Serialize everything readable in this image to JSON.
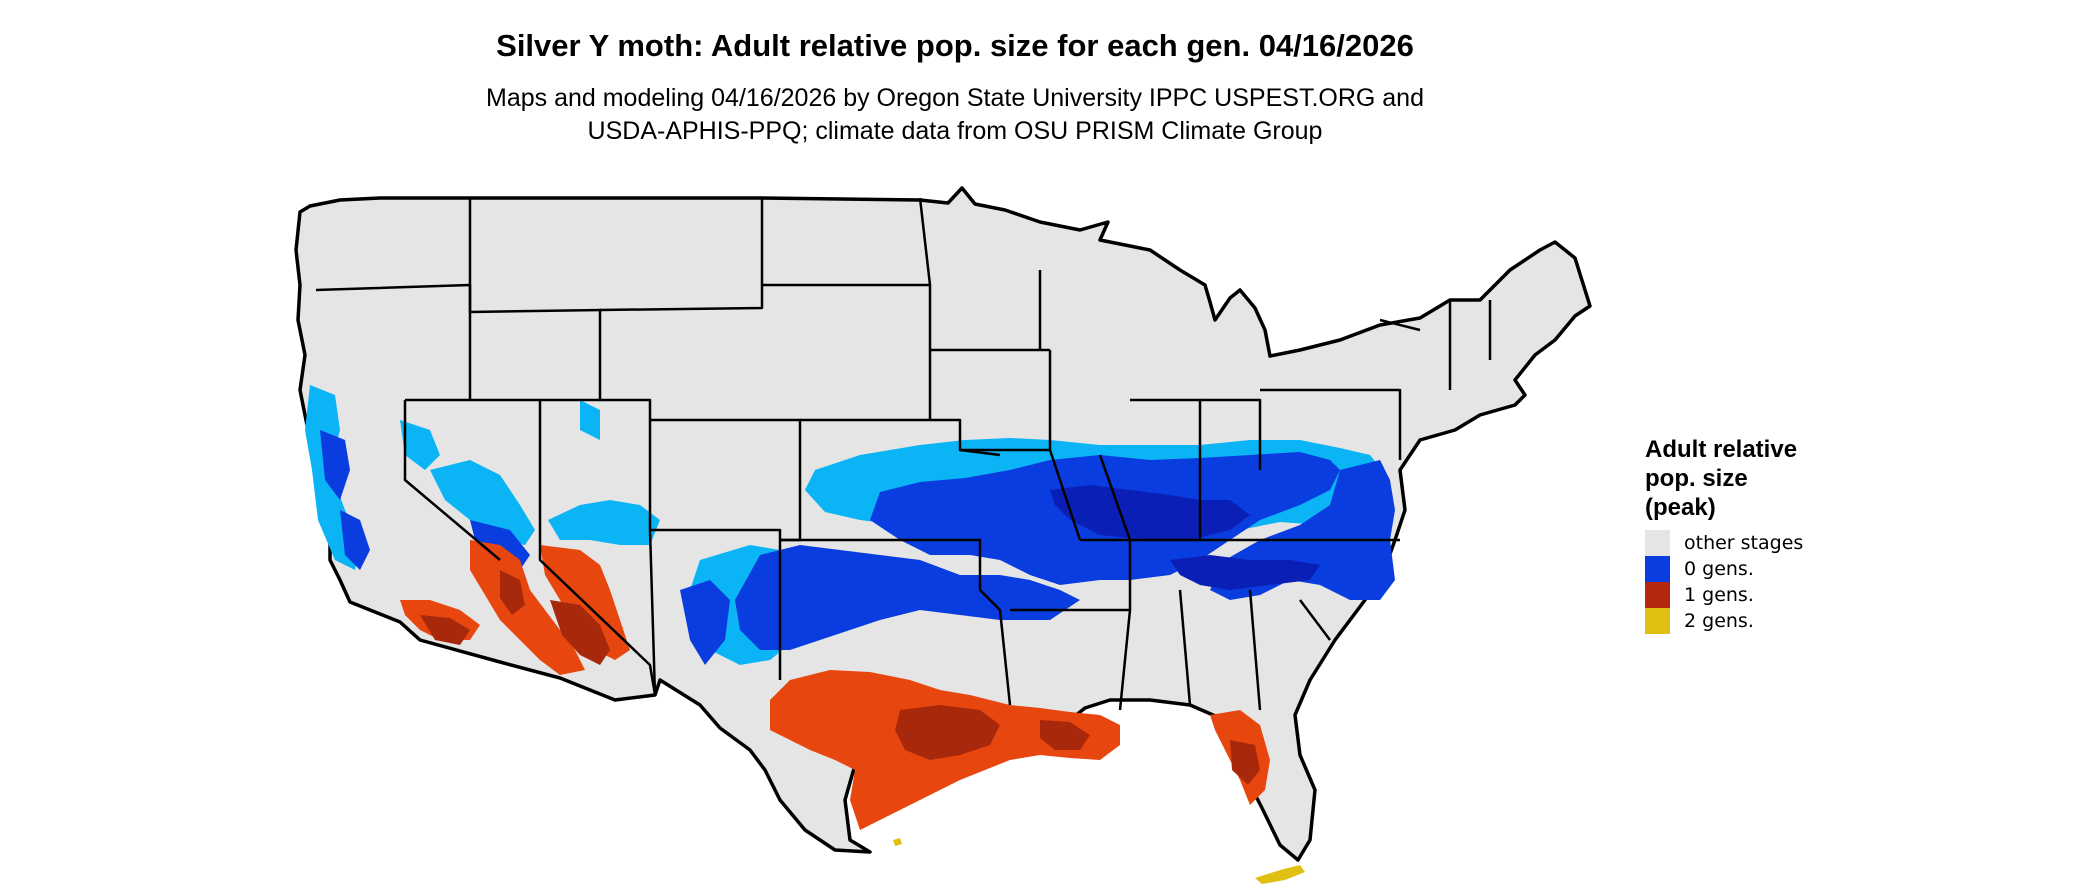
{
  "header": {
    "title": "Silver Y moth: Adult relative pop. size for each gen. 04/16/2026",
    "subtitle_line1": "Maps and modeling 04/16/2026 by Oregon State University IPPC USPEST.ORG and",
    "subtitle_line2": "USDA-APHIS-PPQ; climate data from OSU PRISM Climate Group"
  },
  "legend": {
    "title_line1": "Adult relative",
    "title_line2": "pop. size",
    "title_line3": "(peak)",
    "items": [
      {
        "label": "other stages",
        "color": "#e5e5e5"
      },
      {
        "label": "0 gens.",
        "color": "#0a3de0"
      },
      {
        "label": "1 gens.",
        "color": "#b3280f"
      },
      {
        "label": "2 gens.",
        "color": "#e0c010"
      }
    ]
  },
  "colors": {
    "background_state": "#e5e5e5",
    "light_blue": "#0ab4f5",
    "mid_blue": "#0a3de0",
    "dark_blue": "#0a1fb5",
    "orange_red": "#e8460f",
    "dark_red": "#a8280c",
    "yellow": "#e0c010",
    "border": "#000000"
  }
}
